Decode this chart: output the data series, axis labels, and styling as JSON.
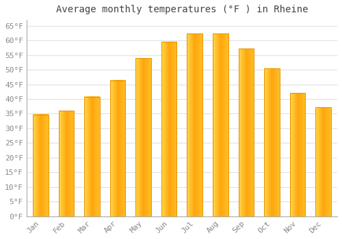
{
  "title": "Average monthly temperatures (°F ) in Rheine",
  "months": [
    "Jan",
    "Feb",
    "Mar",
    "Apr",
    "May",
    "Jun",
    "Jul",
    "Aug",
    "Sep",
    "Oct",
    "Nov",
    "Dec"
  ],
  "values": [
    34.7,
    36.0,
    40.8,
    46.4,
    54.0,
    59.5,
    62.4,
    62.4,
    57.2,
    50.5,
    42.1,
    37.2
  ],
  "bar_color_left": "#FFD060",
  "bar_color_center": "#FFA500",
  "bar_color_right": "#FFB830",
  "ylim": [
    0,
    67
  ],
  "yticks": [
    0,
    5,
    10,
    15,
    20,
    25,
    30,
    35,
    40,
    45,
    50,
    55,
    60,
    65
  ],
  "ytick_labels": [
    "0°F",
    "5°F",
    "10°F",
    "15°F",
    "20°F",
    "25°F",
    "30°F",
    "35°F",
    "40°F",
    "45°F",
    "50°F",
    "55°F",
    "60°F",
    "65°F"
  ],
  "background_color": "#FFFFFF",
  "grid_color": "#E0E0E8",
  "title_fontsize": 10,
  "tick_fontsize": 8,
  "tick_font_color": "#888888",
  "bar_edge_color": "#E89000",
  "bar_width": 0.6
}
